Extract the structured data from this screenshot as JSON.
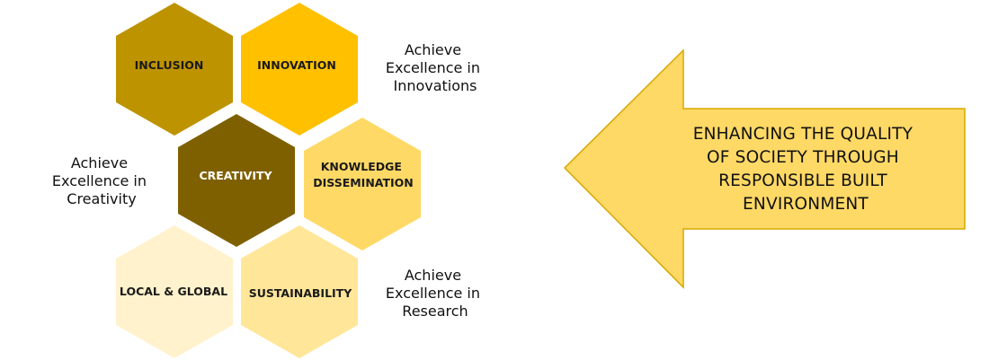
{
  "hexagons": [
    {
      "key": "inclusion",
      "lines": [
        "INCLUSION"
      ],
      "fill": "#BE9300",
      "text_color": "#1a1a1a"
    },
    {
      "key": "innovation",
      "lines": [
        "INNOVATION"
      ],
      "fill": "#FFC000",
      "text_color": "#1a1a1a"
    },
    {
      "key": "creativity",
      "lines": [
        "CREATIVITY"
      ],
      "fill": "#7F6000",
      "text_color": "#ffffff"
    },
    {
      "key": "knowledge-dissemination",
      "lines": [
        "KNOWLEDGE",
        "DISSEMINATION"
      ],
      "fill": "#FFD966",
      "text_color": "#1a1a1a"
    },
    {
      "key": "local-global",
      "lines": [
        "LOCAL & GLOBAL"
      ],
      "fill": "#FFF2CC",
      "text_color": "#1a1a1a"
    },
    {
      "key": "sustainability",
      "lines": [
        "SUSTAINABILITY"
      ],
      "fill": "#FFE699",
      "text_color": "#1a1a1a"
    }
  ],
  "captions": {
    "innovations": [
      "Achieve",
      "Excellence in",
      "Innovations"
    ],
    "creativity": [
      "Achieve",
      "Excellence in",
      "Creativity"
    ],
    "research": [
      "Achieve",
      "Excellence in",
      "Research"
    ]
  },
  "arrow": {
    "lines": [
      "ENHANCING THE QUALITY",
      "OF SOCIETY THROUGH",
      "RESPONSIBLE BUILT",
      "ENVIRONMENT"
    ],
    "fill": "#FFD966",
    "stroke": "#D6A800"
  }
}
